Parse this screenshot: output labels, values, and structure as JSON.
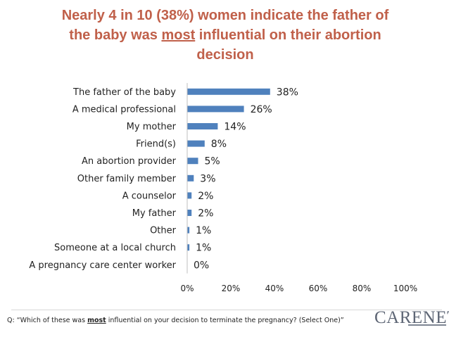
{
  "title": {
    "before": "Nearly 4 in 10 (38%) women indicate the father of",
    "line2_before": "the baby was ",
    "emphasis": "most",
    "line2_after": " influential on their abortion",
    "line3": "decision"
  },
  "chart_data": {
    "type": "bar",
    "orientation": "horizontal",
    "categories": [
      "The father of the baby",
      "A medical professional",
      "My mother",
      "Friend(s)",
      "An abortion provider",
      "Other family member",
      "A counselor",
      "My father",
      "Other",
      "Someone at a local church",
      "A pregnancy care center worker"
    ],
    "values": [
      38,
      26,
      14,
      8,
      5,
      3,
      2,
      2,
      1,
      1,
      0
    ],
    "value_labels": [
      "38%",
      "26%",
      "14%",
      "8%",
      "5%",
      "3%",
      "2%",
      "2%",
      "1%",
      "1%",
      "0%"
    ],
    "xlim": [
      0,
      100
    ],
    "x_ticks": [
      "0%",
      "20%",
      "40%",
      "60%",
      "80%",
      "100%"
    ],
    "x_tick_values": [
      0,
      20,
      40,
      60,
      80,
      100
    ],
    "bar_color": "#4f81bd",
    "grid": false
  },
  "footer": {
    "question_before": "Q: “Which of these was ",
    "question_emphasis": "most",
    "question_after": " influential on your decision to terminate the pregnancy? (Select One)”",
    "logo_text": "CARENET"
  },
  "colors": {
    "title": "#c0604a",
    "bar": "#4f81bd",
    "logo": "#5e6675"
  }
}
